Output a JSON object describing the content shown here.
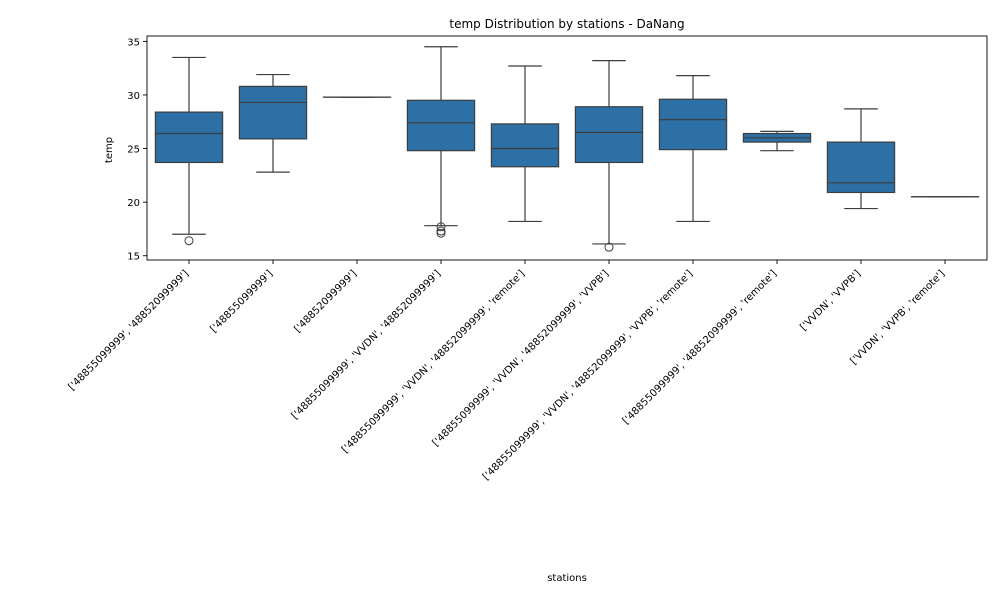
{
  "chart_data": {
    "type": "box",
    "title": "temp Distribution by stations - DaNang",
    "xlabel": "stations",
    "ylabel": "temp",
    "ylim": [
      14.6,
      35.5
    ],
    "yticks": [
      15,
      20,
      25,
      30,
      35
    ],
    "box_color": "#2c70a6",
    "grid": false,
    "legend": "none",
    "categories": [
      "['48855099999', '48852099999']",
      "['48855099999']",
      "['48852099999']",
      "['48855099999', 'VVDN', '48852099999']",
      "['48855099999', 'VVDN', '48852099999', 'remote']",
      "['48855099999', 'VVDN', '48852099999', 'VVPB']",
      "['48855099999', 'VVDN', '48852099999', 'VVPB', 'remote']",
      "['48855099999', '48852099999', 'remote']",
      "['VVDN', 'VVPB']",
      "['VVDN', 'VVPB', 'remote']"
    ],
    "boxes": [
      {
        "whisker_low": 17.0,
        "q1": 23.7,
        "median": 26.4,
        "q3": 28.4,
        "whisker_high": 33.5,
        "outliers": [
          16.4
        ]
      },
      {
        "whisker_low": 22.8,
        "q1": 25.9,
        "median": 29.3,
        "q3": 30.8,
        "whisker_high": 31.9,
        "outliers": []
      },
      {
        "whisker_low": 29.8,
        "q1": 29.8,
        "median": 29.8,
        "q3": 29.8,
        "whisker_high": 29.8,
        "outliers": []
      },
      {
        "whisker_low": 17.8,
        "q1": 24.8,
        "median": 27.4,
        "q3": 29.5,
        "whisker_high": 34.5,
        "outliers": [
          17.7,
          17.3,
          17.1
        ]
      },
      {
        "whisker_low": 18.2,
        "q1": 23.3,
        "median": 25.0,
        "q3": 27.3,
        "whisker_high": 32.7,
        "outliers": []
      },
      {
        "whisker_low": 16.1,
        "q1": 23.7,
        "median": 26.5,
        "q3": 28.9,
        "whisker_high": 33.2,
        "outliers": [
          15.8
        ]
      },
      {
        "whisker_low": 18.2,
        "q1": 24.9,
        "median": 27.7,
        "q3": 29.6,
        "whisker_high": 31.8,
        "outliers": []
      },
      {
        "whisker_low": 24.8,
        "q1": 25.6,
        "median": 26.0,
        "q3": 26.4,
        "whisker_high": 26.6,
        "outliers": []
      },
      {
        "whisker_low": 19.4,
        "q1": 20.9,
        "median": 21.8,
        "q3": 25.6,
        "whisker_high": 28.7,
        "outliers": []
      },
      {
        "whisker_low": 20.5,
        "q1": 20.5,
        "median": 20.5,
        "q3": 20.5,
        "whisker_high": 20.5,
        "outliers": []
      }
    ]
  }
}
